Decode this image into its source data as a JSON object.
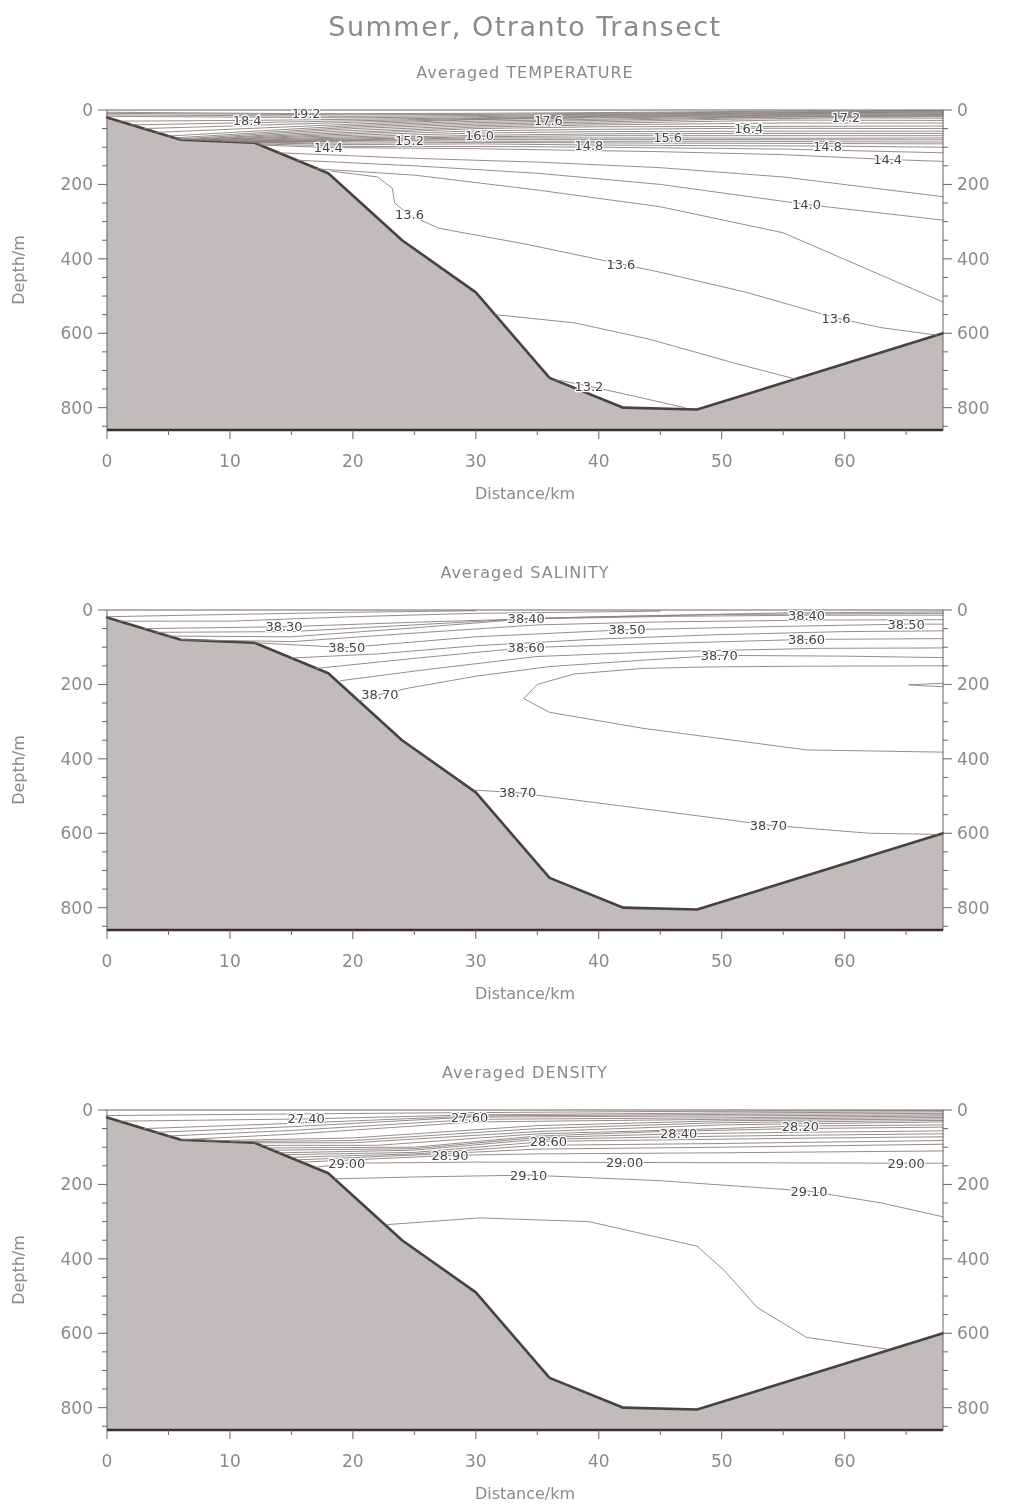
{
  "chart_data": [
    {
      "type": "line",
      "title": "Summer, Otranto Transect",
      "subtitle": "Averaged TEMPERATURE",
      "xlabel": "Distance/km",
      "ylabel": "Depth/m",
      "xlim": [
        0,
        68
      ],
      "ylim": [
        860,
        0
      ],
      "y2lim": [
        860,
        0
      ],
      "xticks": [
        0,
        {
          "value": 5,
          "label": null
        },
        10,
        {
          "value": 15,
          "label": null
        },
        20,
        {
          "value": 25,
          "label": null
        },
        30,
        {
          "value": 35,
          "label": null
        },
        40,
        {
          "value": 45,
          "label": null
        },
        50,
        {
          "value": 55,
          "label": null
        },
        60,
        {
          "value": 65,
          "label": null
        }
      ],
      "yticks": [
        0,
        {
          "value": 50,
          "label": null
        },
        {
          "value": 100,
          "label": null
        },
        {
          "value": 150,
          "label": null
        },
        200,
        {
          "value": 250,
          "label": null
        },
        {
          "value": 300,
          "label": null
        },
        {
          "value": 350,
          "label": null
        },
        400,
        {
          "value": 450,
          "label": null
        },
        {
          "value": 500,
          "label": null
        },
        {
          "value": 550,
          "label": null
        },
        600,
        {
          "value": 650,
          "label": null
        },
        {
          "value": 700,
          "label": null
        },
        {
          "value": 750,
          "label": null
        },
        800,
        {
          "value": 850,
          "label": null
        }
      ],
      "y2ticks": [
        0,
        {
          "value": 50,
          "label": null
        },
        {
          "value": 100,
          "label": null
        },
        {
          "value": 150,
          "label": null
        },
        200,
        {
          "value": 250,
          "label": null
        },
        {
          "value": 300,
          "label": null
        },
        {
          "value": 350,
          "label": null
        },
        400,
        {
          "value": 450,
          "label": null
        },
        {
          "value": 500,
          "label": null
        },
        {
          "value": 550,
          "label": null
        },
        600,
        {
          "value": 650,
          "label": null
        },
        {
          "value": 700,
          "label": null
        },
        {
          "value": 750,
          "label": null
        },
        800,
        {
          "value": 850,
          "label": null
        }
      ],
      "series": [
        {
          "type": "line",
          "color": "#8a807d",
          "x": [
            0,
            16.2,
            30,
            40,
            55,
            68
          ],
          "values": [
            6,
            10,
            9,
            7,
            3,
            2
          ]
        },
        {
          "type": "line",
          "color": "#8a807d",
          "x": [
            0,
            20,
            30,
            40,
            55,
            68
          ],
          "values": [
            9,
            13,
            12,
            9,
            5,
            3
          ]
        },
        {
          "type": "line",
          "color": "#8a807d",
          "x": [
            0,
            20,
            30,
            40,
            55,
            68
          ],
          "values": [
            13,
            17,
            15,
            11,
            7,
            5
          ]
        },
        {
          "type": "line",
          "color": "#8a807d",
          "x": [
            0,
            20,
            30,
            40,
            55,
            68
          ],
          "values": [
            17,
            21,
            18,
            13,
            8,
            6
          ]
        },
        {
          "type": "line",
          "color": "#8a807d",
          "x": [
            1,
            11.4,
            20,
            30,
            40,
            55,
            68
          ],
          "values": [
            30,
            28,
            25,
            21,
            15,
            10,
            8
          ]
        },
        {
          "type": "line",
          "color": "#8a807d",
          "x": [
            2,
            20,
            30,
            40,
            55,
            68
          ],
          "values": [
            40,
            29,
            23,
            17,
            12,
            10
          ]
        },
        {
          "type": "line",
          "color": "#8a807d",
          "x": [
            3,
            20,
            30,
            40,
            55,
            68
          ],
          "values": [
            50,
            33,
            25,
            19,
            14,
            12
          ]
        },
        {
          "type": "line",
          "color": "#8a807d",
          "x": [
            4,
            20,
            30,
            40,
            55,
            68
          ],
          "values": [
            60,
            38,
            26,
            21,
            16,
            14
          ]
        },
        {
          "type": "line",
          "color": "#8a807d",
          "x": [
            5,
            20,
            30,
            35.9,
            45,
            55,
            68
          ],
          "values": [
            70,
            42,
            30,
            27,
            22,
            18,
            16
          ]
        },
        {
          "type": "line",
          "color": "#8a807d",
          "x": [
            5.5,
            20,
            30,
            40,
            55,
            68
          ],
          "values": [
            75,
            46,
            34,
            28,
            19,
            18
          ]
        },
        {
          "type": "line",
          "color": "#8a807d",
          "x": [
            5.8,
            20,
            30,
            40,
            50,
            60.1,
            68
          ],
          "values": [
            78,
            50,
            38,
            32,
            25,
            21,
            22
          ]
        },
        {
          "type": "line",
          "color": "#8a807d",
          "x": [
            6,
            20,
            30,
            40,
            55,
            68
          ],
          "values": [
            80,
            55,
            42,
            36,
            27,
            28
          ]
        },
        {
          "type": "line",
          "color": "#8a807d",
          "x": [
            6.5,
            20,
            30,
            40,
            55,
            68
          ],
          "values": [
            80,
            60,
            46,
            40,
            35,
            35
          ]
        },
        {
          "type": "line",
          "color": "#8a807d",
          "x": [
            7,
            20,
            30,
            40,
            55,
            68
          ],
          "values": [
            81,
            64,
            50,
            45,
            44,
            43
          ]
        },
        {
          "type": "line",
          "color": "#8a807d",
          "x": [
            7.5,
            20,
            30,
            40,
            52.2,
            68
          ],
          "values": [
            81,
            68,
            56,
            52,
            49,
            50
          ]
        },
        {
          "type": "line",
          "color": "#8a807d",
          "x": [
            8,
            20,
            30,
            40,
            55,
            68
          ],
          "values": [
            82,
            72,
            62,
            58,
            57,
            57
          ]
        },
        {
          "type": "line",
          "color": "#8a807d",
          "x": [
            8.7,
            20,
            30.3,
            40,
            55,
            68
          ],
          "values": [
            83,
            75,
            68,
            64,
            63,
            63
          ]
        },
        {
          "type": "line",
          "color": "#8a807d",
          "x": [
            9.3,
            20,
            30,
            40,
            55,
            68
          ],
          "values": [
            84,
            78,
            72,
            69,
            69,
            69
          ]
        },
        {
          "type": "line",
          "color": "#8a807d",
          "x": [
            10,
            20,
            30,
            45.6,
            58,
            68
          ],
          "values": [
            85,
            80,
            75,
            75,
            76,
            75
          ]
        },
        {
          "type": "line",
          "color": "#8a807d",
          "x": [
            10.7,
            20,
            30,
            45,
            58,
            68
          ],
          "values": [
            86,
            82,
            79,
            79,
            80,
            80
          ]
        },
        {
          "type": "line",
          "color": "#8a807d",
          "x": [
            11.3,
            24.6,
            35,
            50,
            58,
            68
          ],
          "values": [
            86,
            83,
            84,
            84,
            85,
            86
          ]
        },
        {
          "type": "line",
          "color": "#8a807d",
          "x": [
            11.7,
            20,
            30,
            45,
            58,
            68
          ],
          "values": [
            87,
            89,
            87,
            89,
            90,
            91
          ]
        },
        {
          "type": "line",
          "color": "#8a807d",
          "x": [
            12,
            20,
            30,
            39.2,
            50,
            58.6,
            68
          ],
          "values": [
            88,
            93,
            91,
            94,
            96,
            97,
            100
          ]
        },
        {
          "type": "line",
          "color": "#8a807d",
          "x": [
            12.2,
            20,
            30,
            40,
            55,
            68
          ],
          "values": [
            91,
            98,
            98,
            100,
            105,
            115
          ]
        },
        {
          "type": "line",
          "color": "#8a807d",
          "x": [
            12.4,
            18,
            30,
            45,
            55,
            63.5,
            68
          ],
          "values": [
            94,
            101,
            104,
            112,
            120,
            133,
            138
          ]
        },
        {
          "type": "line",
          "color": "#8a807d",
          "x": [
            14,
            25,
            35,
            45,
            55,
            68
          ],
          "values": [
            115,
            130,
            140,
            155,
            180,
            233
          ]
        },
        {
          "type": "line",
          "color": "#8a807d",
          "x": [
            15.5,
            25,
            35,
            45,
            56.9,
            68
          ],
          "values": [
            135,
            150,
            170,
            200,
            254,
            296
          ]
        },
        {
          "type": "line",
          "color": "#8a807d",
          "x": [
            17,
            25,
            35,
            45,
            55,
            68
          ],
          "values": [
            158,
            175,
            215,
            260,
            330,
            516
          ]
        },
        {
          "type": "line",
          "color": "#8a807d",
          "x": [
            18.2,
            22,
            23.2,
            23.4,
            24.6,
            27,
            34,
            41.8,
            45,
            52,
            59.3,
            63,
            67.5
          ],
          "values": [
            164,
            180,
            210,
            250,
            282,
            318,
            360,
            414,
            436,
            490,
            559,
            585,
            605
          ]
        },
        {
          "type": "line",
          "color": "#8a807d",
          "x": [
            31.6,
            38,
            44,
            51,
            56
          ],
          "values": [
            550,
            572,
            615,
            680,
            723
          ]
        },
        {
          "type": "line",
          "color": "#8a807d",
          "x": [
            36.5,
            39.2,
            43,
            47
          ],
          "values": [
            725,
            742,
            770,
            800
          ]
        },
        {
          "type": "line",
          "color": "#4a403e",
          "x": [
            0,
            6,
            12,
            18,
            24,
            30,
            36,
            42,
            48,
            68
          ],
          "values": [
            20,
            80,
            88,
            170,
            350,
            490,
            720,
            800,
            805,
            600
          ],
          "lower": [
            20,
            80,
            88,
            170,
            350,
            490,
            720,
            800,
            805,
            600
          ],
          "upper": [
            860,
            860,
            860,
            860,
            860,
            860,
            860,
            860,
            860,
            860
          ]
        }
      ],
      "annotations": [
        {
          "text": "19.2",
          "x": 16.2,
          "y": 10
        },
        {
          "text": "18.4",
          "x": 11.4,
          "y": 28
        },
        {
          "text": "17.6",
          "x": 35.9,
          "y": 27
        },
        {
          "text": "17.2",
          "x": 60.1,
          "y": 21
        },
        {
          "text": "16.4",
          "x": 52.2,
          "y": 49
        },
        {
          "text": "16.0",
          "x": 30.3,
          "y": 68
        },
        {
          "text": "15.6",
          "x": 45.6,
          "y": 75
        },
        {
          "text": "15.2",
          "x": 24.6,
          "y": 83
        },
        {
          "text": "14.8",
          "x": 39.2,
          "y": 94
        },
        {
          "text": "14.8",
          "x": 58.6,
          "y": 97
        },
        {
          "text": "14.4",
          "x": 18,
          "y": 101
        },
        {
          "text": "14.4",
          "x": 63.5,
          "y": 133
        },
        {
          "text": "14.0",
          "x": 56.9,
          "y": 254
        },
        {
          "text": "13.6",
          "x": 24.6,
          "y": 282
        },
        {
          "text": "13.6",
          "x": 41.8,
          "y": 414
        },
        {
          "text": "13.6",
          "x": 59.3,
          "y": 559
        },
        {
          "text": "13.2",
          "x": 39.2,
          "y": 742
        }
      ]
    },
    {
      "type": "line",
      "subtitle": "Averaged SALINITY",
      "xlabel": "Distance/km",
      "ylabel": "Depth/m",
      "xlim": [
        0,
        68
      ],
      "ylim": [
        860,
        0
      ],
      "y2lim": [
        860,
        0
      ],
      "xticks": [
        0,
        {
          "value": 5,
          "label": null
        },
        10,
        {
          "value": 15,
          "label": null
        },
        20,
        {
          "value": 25,
          "label": null
        },
        30,
        {
          "value": 35,
          "label": null
        },
        40,
        {
          "value": 45,
          "label": null
        },
        50,
        {
          "value": 55,
          "label": null
        },
        60,
        {
          "value": 65,
          "label": null
        }
      ],
      "yticks": [
        0,
        {
          "value": 50,
          "label": null
        },
        {
          "value": 100,
          "label": null
        },
        {
          "value": 150,
          "label": null
        },
        200,
        {
          "value": 250,
          "label": null
        },
        {
          "value": 300,
          "label": null
        },
        {
          "value": 350,
          "label": null
        },
        400,
        {
          "value": 450,
          "label": null
        },
        {
          "value": 500,
          "label": null
        },
        {
          "value": 550,
          "label": null
        },
        600,
        {
          "value": 650,
          "label": null
        },
        {
          "value": 700,
          "label": null
        },
        {
          "value": 750,
          "label": null
        },
        800,
        {
          "value": 850,
          "label": null
        }
      ],
      "y2ticks": [
        0,
        {
          "value": 50,
          "label": null
        },
        {
          "value": 100,
          "label": null
        },
        {
          "value": 150,
          "label": null
        },
        200,
        {
          "value": 250,
          "label": null
        },
        {
          "value": 300,
          "label": null
        },
        {
          "value": 350,
          "label": null
        },
        400,
        {
          "value": 450,
          "label": null
        },
        {
          "value": 500,
          "label": null
        },
        {
          "value": 550,
          "label": null
        },
        600,
        {
          "value": 650,
          "label": null
        },
        {
          "value": 700,
          "label": null
        },
        {
          "value": 750,
          "label": null
        },
        800,
        {
          "value": 850,
          "label": null
        }
      ],
      "series": [
        {
          "type": "line",
          "color": "#8a807d",
          "x": [
            0,
            10,
            20,
            30
          ],
          "values": [
            18,
            12,
            6,
            2
          ]
        },
        {
          "type": "line",
          "color": "#8a807d",
          "x": [
            1,
            10,
            20,
            30,
            45
          ],
          "values": [
            30,
            30,
            18,
            9,
            3
          ]
        },
        {
          "type": "line",
          "color": "#8a807d",
          "x": [
            3,
            14.4,
            25,
            40,
            55,
            68
          ],
          "values": [
            50,
            45,
            33,
            18,
            8,
            5
          ]
        },
        {
          "type": "line",
          "color": "#8a807d",
          "x": [
            4,
            15,
            25,
            35,
            50,
            68
          ],
          "values": [
            60,
            58,
            40,
            22,
            12,
            9
          ]
        },
        {
          "type": "line",
          "color": "#8a807d",
          "x": [
            5,
            15,
            25,
            34.1,
            46,
            56.9,
            68
          ],
          "values": [
            70,
            72,
            48,
            24,
            17,
            14,
            14
          ]
        },
        {
          "type": "line",
          "color": "#8a807d",
          "x": [
            6,
            15,
            25,
            35,
            45,
            58,
            68
          ],
          "values": [
            80,
            85,
            62,
            40,
            32,
            27,
            26
          ]
        },
        {
          "type": "line",
          "color": "#8a807d",
          "x": [
            12,
            19.5,
            30,
            42.3,
            55,
            65,
            68
          ],
          "values": [
            88,
            101,
            72,
            53,
            44,
            38,
            38
          ]
        },
        {
          "type": "line",
          "color": "#8a807d",
          "x": [
            15,
            22,
            30,
            40,
            50,
            60,
            68
          ],
          "values": [
            129,
            118,
            96,
            78,
            66,
            58,
            56
          ]
        },
        {
          "type": "line",
          "color": "#8a807d",
          "x": [
            17,
            25,
            34.1,
            45,
            56.9,
            68
          ],
          "values": [
            157,
            130,
            101,
            90,
            79,
            77
          ]
        },
        {
          "type": "line",
          "color": "#8a807d",
          "x": [
            19,
            26,
            35,
            45,
            58,
            68
          ],
          "values": [
            190,
            160,
            125,
            112,
            103,
            102
          ]
        },
        {
          "type": "line",
          "color": "#8a807d",
          "x": [
            20.5,
            22.2,
            24.5,
            30,
            36,
            44,
            49.8,
            60,
            68
          ],
          "values": [
            245,
            227,
            210,
            178,
            152,
            134,
            122,
            124,
            128
          ]
        },
        {
          "type": "line",
          "color": "#8a807d",
          "x": [
            68,
            57,
            49,
            43.6,
            38,
            35,
            33.9,
            36,
            43.6,
            56.9,
            68
          ],
          "values": [
            150,
            151,
            153,
            157,
            172,
            200,
            238,
            275,
            318,
            376,
            382
          ]
        },
        {
          "type": "line",
          "color": "#8a807d",
          "x": [
            68,
            66.5,
            65.2,
            66.5,
            68
          ],
          "values": [
            197,
            199,
            201,
            204,
            206
          ]
        },
        {
          "type": "line",
          "color": "#8a807d",
          "x": [
            29.8,
            33.4,
            45,
            53.8,
            62,
            67.6
          ],
          "values": [
            484,
            491,
            540,
            578,
            600,
            603
          ]
        },
        {
          "type": "line",
          "color": "#4a403e",
          "x": [
            0,
            6,
            12,
            18,
            24,
            30,
            36,
            42,
            48,
            68
          ],
          "values": [
            20,
            80,
            88,
            170,
            350,
            490,
            720,
            800,
            805,
            600
          ],
          "lower": [
            20,
            80,
            88,
            170,
            350,
            490,
            720,
            800,
            805,
            600
          ],
          "upper": [
            860,
            860,
            860,
            860,
            860,
            860,
            860,
            860,
            860,
            860
          ]
        }
      ],
      "annotations": [
        {
          "text": "38.30",
          "x": 14.4,
          "y": 45
        },
        {
          "text": "38.40",
          "x": 34.1,
          "y": 24
        },
        {
          "text": "38.40",
          "x": 56.9,
          "y": 14
        },
        {
          "text": "38.50",
          "x": 19.5,
          "y": 101
        },
        {
          "text": "38.50",
          "x": 42.3,
          "y": 53
        },
        {
          "text": "38.50",
          "x": 65,
          "y": 38
        },
        {
          "text": "38.60",
          "x": 34.1,
          "y": 101
        },
        {
          "text": "38.60",
          "x": 56.9,
          "y": 79
        },
        {
          "text": "38.70",
          "x": 49.8,
          "y": 122
        },
        {
          "text": "38.70",
          "x": 22.2,
          "y": 227
        },
        {
          "text": "38.70",
          "x": 33.4,
          "y": 491
        },
        {
          "text": "38.70",
          "x": 53.8,
          "y": 578
        }
      ]
    },
    {
      "type": "line",
      "subtitle": "Averaged DENSITY",
      "xlabel": "Distance/km",
      "ylabel": "Depth/m",
      "xlim": [
        0,
        68
      ],
      "ylim": [
        860,
        0
      ],
      "y2lim": [
        860,
        0
      ],
      "xticks": [
        0,
        {
          "value": 5,
          "label": null
        },
        10,
        {
          "value": 15,
          "label": null
        },
        20,
        {
          "value": 25,
          "label": null
        },
        30,
        {
          "value": 35,
          "label": null
        },
        40,
        {
          "value": 45,
          "label": null
        },
        50,
        {
          "value": 55,
          "label": null
        },
        60,
        {
          "value": 65,
          "label": null
        }
      ],
      "yticks": [
        0,
        {
          "value": 50,
          "label": null
        },
        {
          "value": 100,
          "label": null
        },
        {
          "value": 150,
          "label": null
        },
        200,
        {
          "value": 250,
          "label": null
        },
        {
          "value": 300,
          "label": null
        },
        {
          "value": 350,
          "label": null
        },
        400,
        {
          "value": 450,
          "label": null
        },
        {
          "value": 500,
          "label": null
        },
        {
          "value": 550,
          "label": null
        },
        600,
        {
          "value": 650,
          "label": null
        },
        {
          "value": 700,
          "label": null
        },
        {
          "value": 750,
          "label": null
        },
        800,
        {
          "value": 850,
          "label": null
        }
      ],
      "y2ticks": [
        0,
        {
          "value": 50,
          "label": null
        },
        {
          "value": 100,
          "label": null
        },
        {
          "value": 150,
          "label": null
        },
        200,
        {
          "value": 250,
          "label": null
        },
        {
          "value": 300,
          "label": null
        },
        {
          "value": 350,
          "label": null
        },
        400,
        {
          "value": 450,
          "label": null
        },
        {
          "value": 500,
          "label": null
        },
        {
          "value": 550,
          "label": null
        },
        600,
        {
          "value": 650,
          "label": null
        },
        {
          "value": 700,
          "label": null
        },
        {
          "value": 750,
          "label": null
        },
        800,
        {
          "value": 850,
          "label": null
        }
      ],
      "series": [
        {
          "type": "line",
          "color": "#8a807d",
          "x": [
            0,
            10,
            25,
            45,
            68
          ],
          "values": [
            15,
            12,
            8,
            4,
            2
          ]
        },
        {
          "type": "line",
          "color": "#8a807d",
          "x": [
            1,
            16.2,
            30,
            50,
            68
          ],
          "values": [
            30,
            24,
            13,
            8,
            5
          ]
        },
        {
          "type": "line",
          "color": "#8a807d",
          "x": [
            3,
            15,
            30,
            50,
            68
          ],
          "values": [
            50,
            36,
            16,
            12,
            9
          ]
        },
        {
          "type": "line",
          "color": "#8a807d",
          "x": [
            4,
            15,
            29.5,
            50,
            68
          ],
          "values": [
            60,
            45,
            19,
            16,
            13
          ]
        },
        {
          "type": "line",
          "color": "#8a807d",
          "x": [
            5,
            15,
            30,
            50,
            68
          ],
          "values": [
            70,
            55,
            25,
            21,
            16
          ]
        },
        {
          "type": "line",
          "color": "#8a807d",
          "x": [
            6,
            15,
            30,
            50,
            68
          ],
          "values": [
            80,
            65,
            32,
            25,
            20
          ]
        },
        {
          "type": "line",
          "color": "#8a807d",
          "x": [
            8,
            20,
            35,
            50,
            68
          ],
          "values": [
            83,
            75,
            42,
            29,
            24
          ]
        },
        {
          "type": "line",
          "color": "#8a807d",
          "x": [
            10,
            20,
            35,
            50,
            68
          ],
          "values": [
            85,
            82,
            50,
            34,
            28
          ]
        },
        {
          "type": "line",
          "color": "#8a807d",
          "x": [
            12,
            20,
            35,
            50,
            68
          ],
          "values": [
            88,
            88,
            58,
            40,
            32
          ]
        },
        {
          "type": "line",
          "color": "#8a807d",
          "x": [
            12.5,
            22,
            35,
            45,
            56.4,
            68
          ],
          "values": [
            95,
            95,
            64,
            55,
            43,
            40
          ]
        },
        {
          "type": "line",
          "color": "#8a807d",
          "x": [
            13,
            25,
            35,
            45,
            56,
            68
          ],
          "values": [
            102,
            100,
            70,
            58,
            50,
            46
          ]
        },
        {
          "type": "line",
          "color": "#8a807d",
          "x": [
            13.5,
            25,
            35,
            46.5,
            56,
            68
          ],
          "values": [
            108,
            104,
            74,
            64,
            60,
            56
          ]
        },
        {
          "type": "line",
          "color": "#8a807d",
          "x": [
            14,
            25,
            35,
            46,
            56,
            68
          ],
          "values": [
            115,
            108,
            79,
            72,
            68,
            64
          ]
        },
        {
          "type": "line",
          "color": "#8a807d",
          "x": [
            14.5,
            25,
            35.9,
            46,
            56,
            68
          ],
          "values": [
            120,
            114,
            84,
            80,
            76,
            72
          ]
        },
        {
          "type": "line",
          "color": "#8a807d",
          "x": [
            15,
            25,
            35,
            50,
            68
          ],
          "values": [
            127,
            118,
            95,
            90,
            82
          ]
        },
        {
          "type": "line",
          "color": "#8a807d",
          "x": [
            15.5,
            25,
            35,
            50,
            68
          ],
          "values": [
            134,
            121,
            105,
            100,
            92
          ]
        },
        {
          "type": "line",
          "color": "#8a807d",
          "x": [
            16,
            27.9,
            35,
            50,
            68
          ],
          "values": [
            140,
            122,
            118,
            115,
            110
          ]
        },
        {
          "type": "line",
          "color": "#8a807d",
          "x": [
            17,
            19.5,
            30,
            42.1,
            55,
            65,
            68
          ],
          "values": [
            154,
            143,
            140,
            141,
            142,
            143,
            143
          ]
        },
        {
          "type": "line",
          "color": "#8a807d",
          "x": [
            18.5,
            25,
            34.3,
            45,
            57.1,
            63,
            68
          ],
          "values": [
            185,
            180,
            175,
            190,
            218,
            250,
            287
          ]
        },
        {
          "type": "line",
          "color": "#8a807d",
          "x": [
            22.8,
            30.3,
            39.2,
            48,
            50.2,
            52.9,
            56.9,
            63.5
          ],
          "values": [
            308,
            290,
            300,
            366,
            431,
            531,
            611,
            643
          ]
        },
        {
          "type": "line",
          "color": "#4a403e",
          "x": [
            0,
            6,
            12,
            18,
            24,
            30,
            36,
            42,
            48,
            68
          ],
          "values": [
            20,
            80,
            88,
            170,
            350,
            490,
            720,
            800,
            805,
            600
          ],
          "lower": [
            20,
            80,
            88,
            170,
            350,
            490,
            720,
            800,
            805,
            600
          ],
          "upper": [
            860,
            860,
            860,
            860,
            860,
            860,
            860,
            860,
            860,
            860
          ]
        }
      ],
      "annotations": [
        {
          "text": "27.40",
          "x": 16.2,
          "y": 24
        },
        {
          "text": "27.60",
          "x": 29.5,
          "y": 19
        },
        {
          "text": "28.20",
          "x": 56.4,
          "y": 43
        },
        {
          "text": "28.40",
          "x": 46.5,
          "y": 64
        },
        {
          "text": "28.60",
          "x": 35.9,
          "y": 84
        },
        {
          "text": "28.90",
          "x": 27.9,
          "y": 122
        },
        {
          "text": "29.00",
          "x": 19.5,
          "y": 143
        },
        {
          "text": "29.00",
          "x": 42.1,
          "y": 141
        },
        {
          "text": "29.00",
          "x": 65,
          "y": 143
        },
        {
          "text": "29.10",
          "x": 34.3,
          "y": 175
        },
        {
          "text": "29.10",
          "x": 57.1,
          "y": 218
        }
      ]
    }
  ]
}
